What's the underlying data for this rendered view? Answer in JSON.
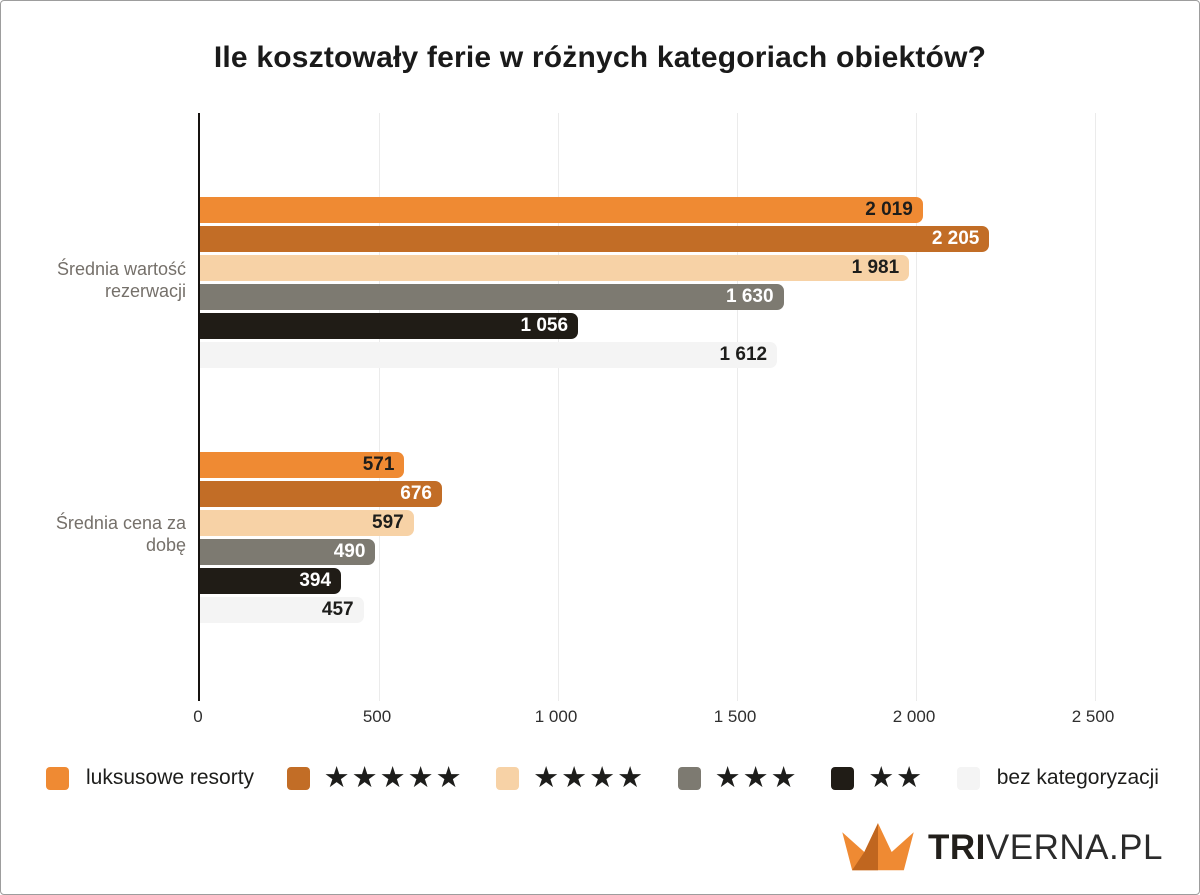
{
  "chart_data": {
    "type": "bar",
    "orientation": "horizontal",
    "title": "Ile kosztowały ferie w różnych kategoriach obiektów?",
    "groups": [
      "Średnia wartość rezerwacji",
      "Średnia cena za dobę"
    ],
    "series": [
      {
        "name": "luksusowe resorty",
        "color": "#ef8a33",
        "label_color": "#1d1d1b",
        "values": [
          2019,
          571
        ],
        "labels": [
          "2 019",
          "571"
        ]
      },
      {
        "name": "★★★★★",
        "color": "#c26d26",
        "label_color": "#ffffff",
        "values": [
          2205,
          676
        ],
        "labels": [
          "2 205",
          "676"
        ]
      },
      {
        "name": "★★★★",
        "color": "#f7d2a6",
        "label_color": "#1d1d1b",
        "values": [
          1981,
          597
        ],
        "labels": [
          "1 981",
          "597"
        ]
      },
      {
        "name": "★★★",
        "color": "#7d7a71",
        "label_color": "#ffffff",
        "values": [
          1630,
          490
        ],
        "labels": [
          "1 630",
          "490"
        ]
      },
      {
        "name": "★★",
        "color": "#201c16",
        "label_color": "#ffffff",
        "values": [
          1056,
          394
        ],
        "labels": [
          "1 056",
          "394"
        ]
      },
      {
        "name": "bez kategoryzacji",
        "color": "#f4f4f4",
        "label_color": "#1d1d1b",
        "values": [
          1612,
          457
        ],
        "labels": [
          "1 612",
          "457"
        ]
      }
    ],
    "xlim": [
      0,
      2500
    ],
    "x_ticks": [
      {
        "value": 0,
        "label": "0"
      },
      {
        "value": 500,
        "label": "500"
      },
      {
        "value": 1000,
        "label": "1 000"
      },
      {
        "value": 1500,
        "label": "1 500"
      },
      {
        "value": 2000,
        "label": "2 000"
      },
      {
        "value": 2500,
        "label": "2 500"
      }
    ],
    "grid": true,
    "legend_position": "bottom"
  },
  "logo": {
    "brand_bold": "TRI",
    "brand_light": "VERNA.PL",
    "crown_color": "#ef8a33",
    "crown_shade_color": "#c0661f"
  }
}
